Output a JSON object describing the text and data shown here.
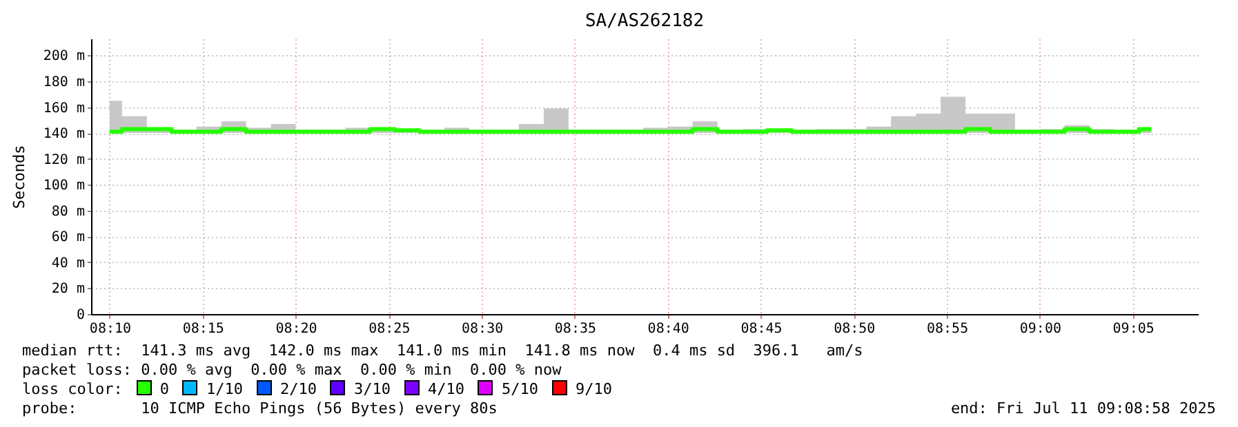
{
  "chart_data": {
    "type": "step",
    "title": "SA/AS262182",
    "ylabel": "Seconds",
    "legend_title": "loss color:",
    "legend": "bottom",
    "grid": true,
    "x": [
      "2025-07-11T08:10:00",
      "2025-07-11T08:11:20",
      "2025-07-11T08:12:40",
      "2025-07-11T08:14:00",
      "2025-07-11T08:15:20",
      "2025-07-11T08:16:40",
      "2025-07-11T08:18:00",
      "2025-07-11T08:19:20",
      "2025-07-11T08:20:40",
      "2025-07-11T08:22:00",
      "2025-07-11T08:23:20",
      "2025-07-11T08:24:40",
      "2025-07-11T08:26:00",
      "2025-07-11T08:27:20",
      "2025-07-11T08:28:40",
      "2025-07-11T08:30:00",
      "2025-07-11T08:31:20",
      "2025-07-11T08:32:40",
      "2025-07-11T08:34:00",
      "2025-07-11T08:35:20",
      "2025-07-11T08:36:40",
      "2025-07-11T08:38:00",
      "2025-07-11T08:39:20",
      "2025-07-11T08:40:40",
      "2025-07-11T08:42:00",
      "2025-07-11T08:43:20",
      "2025-07-11T08:44:40",
      "2025-07-11T08:46:00",
      "2025-07-11T08:47:20",
      "2025-07-11T08:48:40",
      "2025-07-11T08:50:00",
      "2025-07-11T08:51:20",
      "2025-07-11T08:52:40",
      "2025-07-11T08:54:00",
      "2025-07-11T08:55:20",
      "2025-07-11T08:56:40",
      "2025-07-11T08:58:00",
      "2025-07-11T08:59:20",
      "2025-07-11T09:00:40",
      "2025-07-11T09:02:00",
      "2025-07-11T09:03:20",
      "2025-07-11T09:04:40",
      "2025-07-11T09:06:00"
    ],
    "series": [
      {
        "name": "0",
        "color": "#26ff00",
        "values": [
          141,
          143,
          143,
          141,
          141,
          143,
          141,
          141,
          141,
          141,
          141,
          143,
          142,
          141,
          141,
          141,
          141,
          141,
          141,
          141,
          141,
          141,
          141,
          141,
          143,
          141,
          141,
          142,
          141,
          141,
          141,
          141,
          141,
          141,
          141,
          143,
          141,
          141,
          141,
          143,
          141,
          141,
          143
        ],
        "lower": [
          140,
          140,
          140,
          140,
          140,
          140,
          140,
          140,
          140,
          140,
          140,
          140,
          140,
          140,
          140,
          140,
          140,
          140,
          140,
          140,
          140,
          140,
          140,
          140,
          140,
          140,
          140,
          140,
          140,
          140,
          140,
          140,
          140,
          140,
          140,
          140,
          140,
          140,
          140,
          140,
          140,
          140,
          140
        ],
        "upper": [
          165,
          153,
          143,
          141,
          145,
          149,
          144,
          147,
          141,
          141,
          144,
          143,
          142,
          141,
          144,
          141,
          141,
          147,
          159,
          141,
          141,
          141,
          144,
          145,
          149,
          141,
          143,
          142,
          141,
          143,
          143,
          145,
          153,
          155,
          168,
          155,
          155,
          141,
          143,
          146,
          143,
          141,
          143
        ]
      },
      {
        "name": "1/10",
        "color": "#00b8ff",
        "values": [
          null,
          null,
          null,
          null,
          null,
          null,
          null,
          null,
          null,
          null,
          null,
          null,
          null,
          null,
          null,
          null,
          null,
          null,
          null,
          null,
          null,
          null,
          null,
          null,
          null,
          null,
          null,
          null,
          null,
          null,
          null,
          null,
          null,
          null,
          null,
          null,
          null,
          null,
          null,
          null,
          null,
          null,
          null
        ]
      },
      {
        "name": "2/10",
        "color": "#0059ff",
        "values": [
          null,
          null,
          null,
          null,
          null,
          null,
          null,
          null,
          null,
          null,
          null,
          null,
          null,
          null,
          null,
          null,
          null,
          null,
          null,
          null,
          null,
          null,
          null,
          null,
          null,
          null,
          null,
          null,
          null,
          null,
          null,
          null,
          null,
          null,
          null,
          null,
          null,
          null,
          null,
          null,
          null,
          null,
          null
        ]
      },
      {
        "name": "3/10",
        "color": "#5e00ff",
        "values": [
          null,
          null,
          null,
          null,
          null,
          null,
          null,
          null,
          null,
          null,
          null,
          null,
          null,
          null,
          null,
          null,
          null,
          null,
          null,
          null,
          null,
          null,
          null,
          null,
          null,
          null,
          null,
          null,
          null,
          null,
          null,
          null,
          null,
          null,
          null,
          null,
          null,
          null,
          null,
          null,
          null,
          null,
          null
        ]
      },
      {
        "name": "4/10",
        "color": "#7e00ff",
        "values": [
          null,
          null,
          null,
          null,
          null,
          null,
          null,
          null,
          null,
          null,
          null,
          null,
          null,
          null,
          null,
          null,
          null,
          null,
          null,
          null,
          null,
          null,
          null,
          null,
          null,
          null,
          null,
          null,
          null,
          null,
          null,
          null,
          null,
          null,
          null,
          null,
          null,
          null,
          null,
          null,
          null,
          null,
          null
        ]
      },
      {
        "name": "5/10",
        "color": "#dd00ff",
        "values": [
          null,
          null,
          null,
          null,
          null,
          null,
          null,
          null,
          null,
          null,
          null,
          null,
          null,
          null,
          null,
          null,
          null,
          null,
          null,
          null,
          null,
          null,
          null,
          null,
          null,
          null,
          null,
          null,
          null,
          null,
          null,
          null,
          null,
          null,
          null,
          null,
          null,
          null,
          null,
          null,
          null,
          null,
          null
        ]
      },
      {
        "name": "9/10",
        "color": "#ff0000",
        "values": [
          null,
          null,
          null,
          null,
          null,
          null,
          null,
          null,
          null,
          null,
          null,
          null,
          null,
          null,
          null,
          null,
          null,
          null,
          null,
          null,
          null,
          null,
          null,
          null,
          null,
          null,
          null,
          null,
          null,
          null,
          null,
          null,
          null,
          null,
          null,
          null,
          null,
          null,
          null,
          null,
          null,
          null,
          null
        ]
      }
    ],
    "xlim": [
      "2025-07-11T08:09:00",
      "2025-07-11T09:08:30"
    ],
    "xticks": [
      {
        "value": "2025-07-11T08:10",
        "label": "08:10"
      },
      {
        "value": "2025-07-11T08:15",
        "label": "08:15"
      },
      {
        "value": "2025-07-11T08:20",
        "label": "08:20"
      },
      {
        "value": "2025-07-11T08:25",
        "label": "08:25"
      },
      {
        "value": "2025-07-11T08:30",
        "label": "08:30"
      },
      {
        "value": "2025-07-11T08:35",
        "label": "08:35"
      },
      {
        "value": "2025-07-11T08:40",
        "label": "08:40"
      },
      {
        "value": "2025-07-11T08:45",
        "label": "08:45"
      },
      {
        "value": "2025-07-11T08:50",
        "label": "08:50"
      },
      {
        "value": "2025-07-11T08:55",
        "label": "08:55"
      },
      {
        "value": "2025-07-11T09:00",
        "label": "09:00"
      },
      {
        "value": "2025-07-11T09:05",
        "label": "09:05"
      }
    ],
    "ylim": [
      0,
      213
    ],
    "yticks": [
      0,
      {
        "value": 20,
        "label": "20 m"
      },
      {
        "value": 40,
        "label": "40 m"
      },
      {
        "value": 60,
        "label": "60 m"
      },
      {
        "value": 80,
        "label": "80 m"
      },
      {
        "value": 100,
        "label": "100 m"
      },
      {
        "value": 120,
        "label": "120 m"
      },
      {
        "value": 140,
        "label": "140 m"
      },
      {
        "value": 160,
        "label": "160 m"
      },
      {
        "value": 180,
        "label": "180 m"
      },
      {
        "value": 200,
        "label": "200 m"
      }
    ],
    "annotations": [
      "median rtt:  141.3 ms avg  142.0 ms max  141.0 ms min  141.8 ms now  0.4 ms sd  396.1   am/s",
      "packet loss: 0.00 % avg  0.00 % max  0.00 % min  0.00 % now",
      "probe:       10 ICMP Echo Pings (56 Bytes) every 80s",
      "end: Fri Jul 11 09:08:58 2025"
    ]
  }
}
